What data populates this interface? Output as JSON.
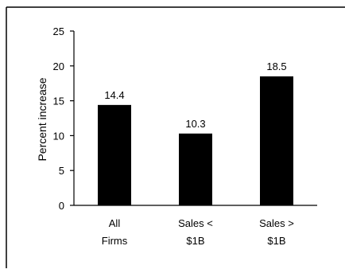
{
  "chart_data": {
    "type": "bar",
    "title": "",
    "xlabel": "",
    "ylabel": "Percent increase",
    "categories": [
      [
        "All",
        "Firms"
      ],
      [
        "Sales <",
        "$1B"
      ],
      [
        "Sales >",
        "$1B"
      ]
    ],
    "values": [
      14.4,
      10.3,
      18.5
    ],
    "data_labels": [
      "14.4",
      "10.3",
      "18.5"
    ],
    "ylim": [
      0,
      25
    ],
    "yticks": [
      0,
      5,
      10,
      15,
      20,
      25
    ],
    "grid": false,
    "legend": "none",
    "colors": {
      "bar": "#000000",
      "axis": "#000000",
      "frame": "#000000"
    }
  }
}
